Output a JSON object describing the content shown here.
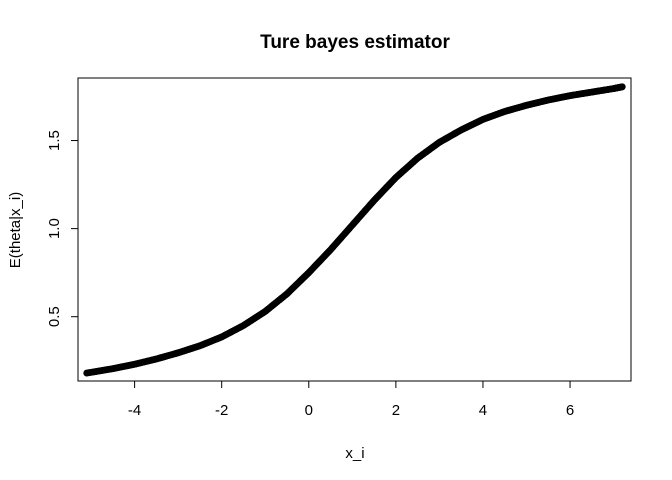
{
  "chart_data": {
    "type": "scatter",
    "title": "Ture bayes estimator",
    "xlabel": "x_i",
    "ylabel": "E(theta|x_i)",
    "xlim": [
      -5.3,
      7.4
    ],
    "ylim": [
      0.135,
      1.855
    ],
    "x_ticks": [
      -4,
      -2,
      0,
      2,
      4,
      6
    ],
    "y_ticks": [
      0.5,
      1.0,
      1.5
    ],
    "x_tick_labels": [
      "-4",
      "-2",
      "0",
      "2",
      "4",
      "6"
    ],
    "y_tick_labels": [
      "0.5",
      "1.0",
      "1.5"
    ],
    "grid": false,
    "legend": "none",
    "point_color": "#000000",
    "series": [
      {
        "x": [
          -5.1,
          -4.5,
          -4.0,
          -3.5,
          -3.0,
          -2.5,
          -2.0,
          -1.5,
          -1.0,
          -0.5,
          0.0,
          0.5,
          1.0,
          1.5,
          2.0,
          2.5,
          3.0,
          3.5,
          4.0,
          4.5,
          5.0,
          5.5,
          6.0,
          6.5,
          7.0,
          7.2
        ],
        "y": [
          0.18,
          0.205,
          0.23,
          0.26,
          0.295,
          0.335,
          0.385,
          0.45,
          0.53,
          0.63,
          0.75,
          0.88,
          1.02,
          1.16,
          1.29,
          1.4,
          1.49,
          1.56,
          1.62,
          1.665,
          1.7,
          1.73,
          1.755,
          1.775,
          1.795,
          1.805
        ]
      }
    ]
  }
}
